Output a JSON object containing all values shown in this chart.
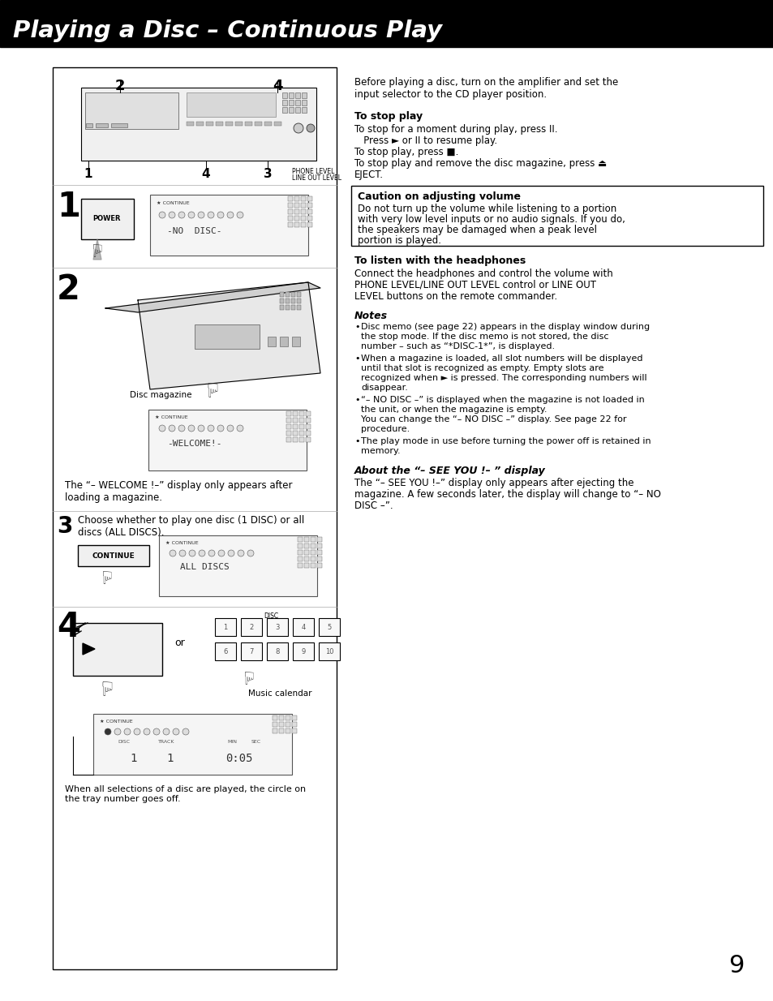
{
  "title": "Playing a Disc – Continuous Play",
  "title_bg": "#000000",
  "title_color": "#ffffff",
  "page_bg": "#ffffff",
  "page_number": "9",
  "right_panel": {
    "intro": "Before playing a disc, turn on the amplifier and set the\ninput selector to the CD player position.",
    "section1_title": "To stop play",
    "stop_lines": [
      "To stop for a moment during play, press II.",
      "   Press ► or II to resume play.",
      "To stop play, press ■.",
      "To stop play and remove the disc magazine, press ⏏",
      "EJECT."
    ],
    "caution_title": "Caution on adjusting volume",
    "caution_body": "Do not turn up the volume while listening to a portion\nwith very low level inputs or no audio signals. If you do,\nthe speakers may be damaged when a peak level\nportion is played.",
    "section2_title": "To listen with the headphones",
    "section2_body": "Connect the headphones and control the volume with\nPHONE LEVEL/LINE OUT LEVEL control or LINE OUT\nLEVEL buttons on the remote commander.",
    "notes_title": "Notes",
    "notes": [
      "Disc memo (see page 22) appears in the display window during\nthe stop mode. If the disc memo is not stored, the disc\nnumber – such as “*DISC-1*”, is displayed.",
      "When a magazine is loaded, all slot numbers will be displayed\nuntil that slot is recognized as empty. Empty slots are\nrecognized when ► is pressed. The corresponding numbers will\ndisappear.",
      "“– NO DISC –” is displayed when the magazine is not loaded in\nthe unit, or when the magazine is empty.\nYou can change the “– NO DISC –” display. See page 22 for\nprocedure.",
      "The play mode in use before turning the power off is retained in\nmemory."
    ],
    "about_title": "About the “– SEE YOU !– ” display",
    "about_body": "The “– SEE YOU !–” display only appears after ejecting the\nmagazine. A few seconds later, the display will change to “– NO\nDISC –”."
  },
  "left_panel": {
    "step2_caption": "The “– WELCOME !–” display only appears after\nloading a magazine.",
    "step3_desc": "Choose whether to play one disc (1 DISC) or all\ndiscs (ALL DISCS).",
    "step4_caption": "When all selections of a disc are played, the circle on\nthe tray number goes off.",
    "disc_magazine": "Disc magazine",
    "music_calendar": "Music calendar",
    "or_text": "or"
  }
}
